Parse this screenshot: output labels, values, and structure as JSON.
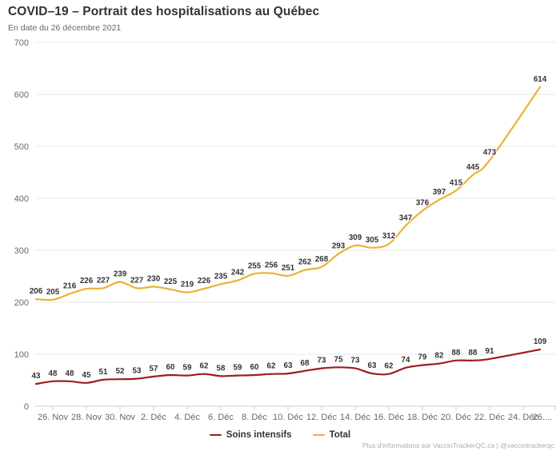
{
  "chart_data": {
    "type": "line",
    "title": "COVID–19 – Portrait des hospitalisations au Québec",
    "subtitle": "En date du 26 décembre 2021",
    "ylabel": "",
    "xlabel": "",
    "ylim": [
      0,
      700
    ],
    "y_ticks": [
      0,
      100,
      200,
      300,
      400,
      500,
      600,
      700
    ],
    "grid": "horizontal",
    "legend_position": "bottom",
    "x_axis": {
      "tick_labels": [
        "26. Nov",
        "28. Nov",
        "30. Nov",
        "2. Déc",
        "4. Déc",
        "6. Déc",
        "8. Déc",
        "10. Déc",
        "12. Déc",
        "14. Déc",
        "16. Déc",
        "18. Déc",
        "20. Déc",
        "22. Déc",
        "24. Déc",
        "26...."
      ],
      "tick_day_offsets": [
        1,
        3,
        5,
        7,
        9,
        11,
        13,
        15,
        17,
        19,
        21,
        23,
        25,
        27,
        29,
        31
      ],
      "total_days": 31
    },
    "x_day_offsets": [
      0,
      1,
      2,
      3,
      4,
      5,
      6,
      7,
      8,
      9,
      10,
      11,
      12,
      13,
      14,
      15,
      16,
      17,
      18,
      19,
      20,
      21,
      22,
      23,
      24,
      25,
      26,
      27,
      30
    ],
    "series": [
      {
        "name": "Soins intensifs",
        "color": "#9d1d20",
        "values": [
          43,
          48,
          48,
          45,
          51,
          52,
          53,
          57,
          60,
          59,
          62,
          58,
          59,
          60,
          62,
          63,
          68,
          73,
          75,
          73,
          63,
          62,
          74,
          79,
          82,
          88,
          88,
          91,
          109
        ]
      },
      {
        "name": "Total",
        "color": "#ebb234",
        "values": [
          206,
          205,
          216,
          226,
          227,
          239,
          227,
          230,
          225,
          219,
          226,
          235,
          242,
          255,
          256,
          251,
          262,
          268,
          293,
          309,
          305,
          312,
          347,
          376,
          397,
          415,
          445,
          473,
          614
        ]
      }
    ]
  },
  "colors": {
    "grid_line": "#e8e9eb",
    "axis_line": "#c9cdd3",
    "axis_label": "#65696e",
    "data_label": "#333333",
    "title": "#333333",
    "subtitle": "#666666"
  },
  "footer": {
    "credit": "Plus d'informations sur VaccinTrackerQC.ca | @vaccintrackerqc"
  }
}
